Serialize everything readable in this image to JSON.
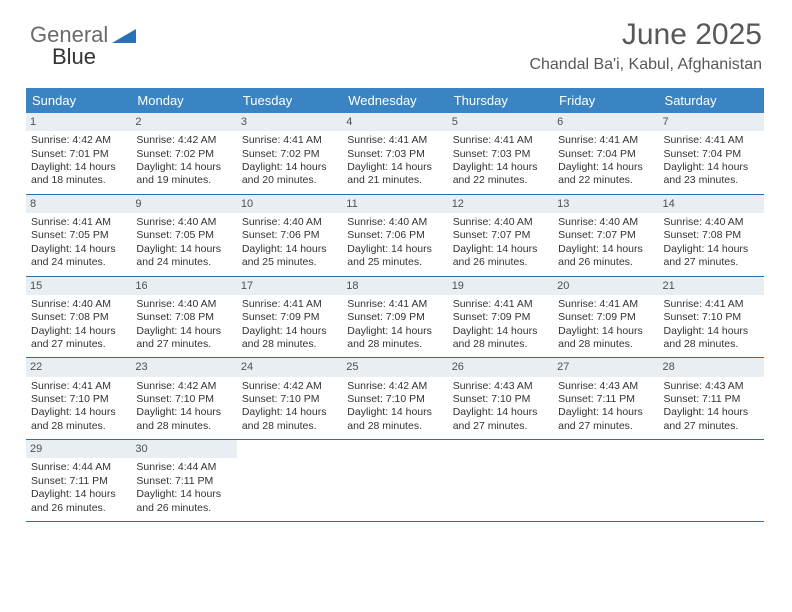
{
  "logo": {
    "text1": "General",
    "text2": "Blue"
  },
  "header": {
    "title": "June 2025",
    "location": "Chandal Ba'i, Kabul, Afghanistan"
  },
  "colors": {
    "header_bg": "#3b84c4",
    "header_text": "#ffffff",
    "daynum_bg": "#e9eef2",
    "week_border": "#2f6fa8",
    "body_text": "#333333",
    "title_text": "#585858"
  },
  "daynames": [
    "Sunday",
    "Monday",
    "Tuesday",
    "Wednesday",
    "Thursday",
    "Friday",
    "Saturday"
  ],
  "weeks": [
    [
      {
        "n": "1",
        "sr": "4:42 AM",
        "ss": "7:01 PM",
        "dl": "14 hours and 18 minutes."
      },
      {
        "n": "2",
        "sr": "4:42 AM",
        "ss": "7:02 PM",
        "dl": "14 hours and 19 minutes."
      },
      {
        "n": "3",
        "sr": "4:41 AM",
        "ss": "7:02 PM",
        "dl": "14 hours and 20 minutes."
      },
      {
        "n": "4",
        "sr": "4:41 AM",
        "ss": "7:03 PM",
        "dl": "14 hours and 21 minutes."
      },
      {
        "n": "5",
        "sr": "4:41 AM",
        "ss": "7:03 PM",
        "dl": "14 hours and 22 minutes."
      },
      {
        "n": "6",
        "sr": "4:41 AM",
        "ss": "7:04 PM",
        "dl": "14 hours and 22 minutes."
      },
      {
        "n": "7",
        "sr": "4:41 AM",
        "ss": "7:04 PM",
        "dl": "14 hours and 23 minutes."
      }
    ],
    [
      {
        "n": "8",
        "sr": "4:41 AM",
        "ss": "7:05 PM",
        "dl": "14 hours and 24 minutes."
      },
      {
        "n": "9",
        "sr": "4:40 AM",
        "ss": "7:05 PM",
        "dl": "14 hours and 24 minutes."
      },
      {
        "n": "10",
        "sr": "4:40 AM",
        "ss": "7:06 PM",
        "dl": "14 hours and 25 minutes."
      },
      {
        "n": "11",
        "sr": "4:40 AM",
        "ss": "7:06 PM",
        "dl": "14 hours and 25 minutes."
      },
      {
        "n": "12",
        "sr": "4:40 AM",
        "ss": "7:07 PM",
        "dl": "14 hours and 26 minutes."
      },
      {
        "n": "13",
        "sr": "4:40 AM",
        "ss": "7:07 PM",
        "dl": "14 hours and 26 minutes."
      },
      {
        "n": "14",
        "sr": "4:40 AM",
        "ss": "7:08 PM",
        "dl": "14 hours and 27 minutes."
      }
    ],
    [
      {
        "n": "15",
        "sr": "4:40 AM",
        "ss": "7:08 PM",
        "dl": "14 hours and 27 minutes."
      },
      {
        "n": "16",
        "sr": "4:40 AM",
        "ss": "7:08 PM",
        "dl": "14 hours and 27 minutes."
      },
      {
        "n": "17",
        "sr": "4:41 AM",
        "ss": "7:09 PM",
        "dl": "14 hours and 28 minutes."
      },
      {
        "n": "18",
        "sr": "4:41 AM",
        "ss": "7:09 PM",
        "dl": "14 hours and 28 minutes."
      },
      {
        "n": "19",
        "sr": "4:41 AM",
        "ss": "7:09 PM",
        "dl": "14 hours and 28 minutes."
      },
      {
        "n": "20",
        "sr": "4:41 AM",
        "ss": "7:09 PM",
        "dl": "14 hours and 28 minutes."
      },
      {
        "n": "21",
        "sr": "4:41 AM",
        "ss": "7:10 PM",
        "dl": "14 hours and 28 minutes."
      }
    ],
    [
      {
        "n": "22",
        "sr": "4:41 AM",
        "ss": "7:10 PM",
        "dl": "14 hours and 28 minutes."
      },
      {
        "n": "23",
        "sr": "4:42 AM",
        "ss": "7:10 PM",
        "dl": "14 hours and 28 minutes."
      },
      {
        "n": "24",
        "sr": "4:42 AM",
        "ss": "7:10 PM",
        "dl": "14 hours and 28 minutes."
      },
      {
        "n": "25",
        "sr": "4:42 AM",
        "ss": "7:10 PM",
        "dl": "14 hours and 28 minutes."
      },
      {
        "n": "26",
        "sr": "4:43 AM",
        "ss": "7:10 PM",
        "dl": "14 hours and 27 minutes."
      },
      {
        "n": "27",
        "sr": "4:43 AM",
        "ss": "7:11 PM",
        "dl": "14 hours and 27 minutes."
      },
      {
        "n": "28",
        "sr": "4:43 AM",
        "ss": "7:11 PM",
        "dl": "14 hours and 27 minutes."
      }
    ],
    [
      {
        "n": "29",
        "sr": "4:44 AM",
        "ss": "7:11 PM",
        "dl": "14 hours and 26 minutes."
      },
      {
        "n": "30",
        "sr": "4:44 AM",
        "ss": "7:11 PM",
        "dl": "14 hours and 26 minutes."
      },
      null,
      null,
      null,
      null,
      null
    ]
  ],
  "labels": {
    "sunrise": "Sunrise: ",
    "sunset": "Sunset: ",
    "daylight": "Daylight: "
  }
}
